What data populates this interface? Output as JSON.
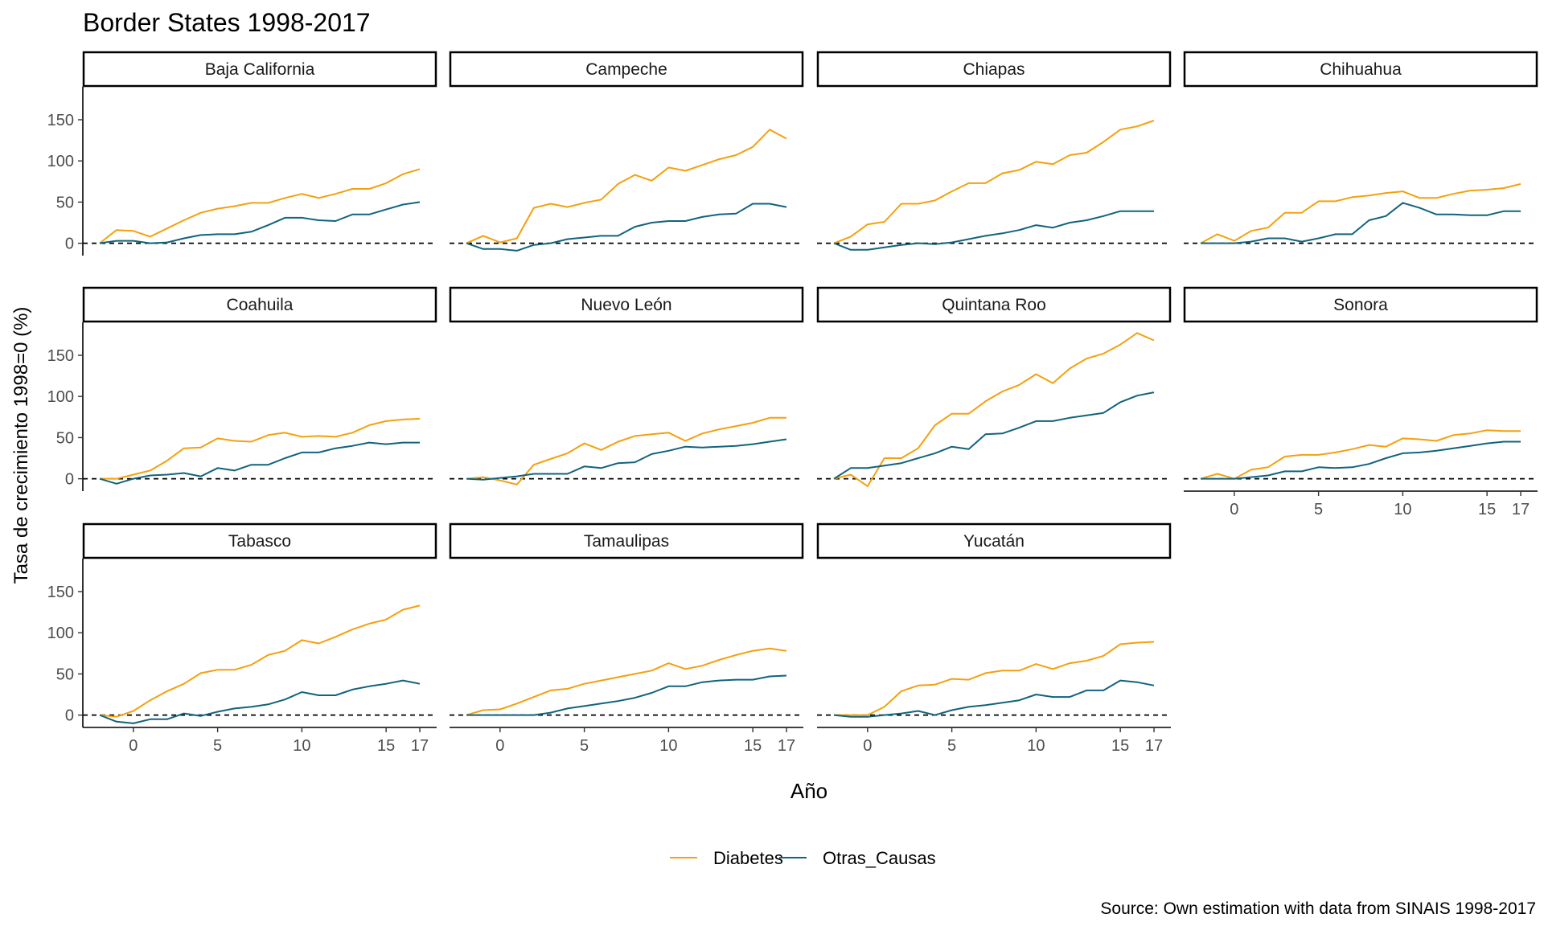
{
  "chart_data": {
    "type": "line",
    "title": "Border States 1998-2017",
    "xlabel": "Año",
    "ylabel": "Tasa de crecimiento 1998=0 (%)",
    "caption": "Source: Own estimation with data from SINAIS 1998-2017",
    "x": [
      -2,
      -1,
      0,
      1,
      2,
      3,
      4,
      5,
      6,
      7,
      8,
      9,
      10,
      11,
      12,
      13,
      14,
      15,
      16,
      17
    ],
    "xlim": [
      -3,
      18
    ],
    "ylim": [
      -15,
      190
    ],
    "x_ticks": [
      0,
      5,
      10,
      15,
      17
    ],
    "y_ticks": [
      0,
      50,
      100,
      150
    ],
    "reference_line": 0,
    "grid": false,
    "legend_position": "bottom",
    "series_names": [
      "Diabetes",
      "Otras_Causas"
    ],
    "colors": {
      "Diabetes": "#F5A00E",
      "Otras_Causas": "#11637E",
      "reference": "#000000"
    },
    "panels": [
      {
        "name": "Baja California",
        "series": [
          {
            "name": "Diabetes",
            "values": [
              0,
              16,
              15,
              8,
              18,
              28,
              37,
              42,
              45,
              49,
              49,
              55,
              60,
              55,
              60,
              66,
              66,
              73,
              84,
              90
            ]
          },
          {
            "name": "Otras_Causas",
            "values": [
              0,
              3,
              3,
              0,
              1,
              6,
              10,
              11,
              11,
              14,
              22,
              31,
              31,
              28,
              27,
              35,
              35,
              41,
              47,
              50
            ]
          }
        ]
      },
      {
        "name": "Campeche",
        "series": [
          {
            "name": "Diabetes",
            "values": [
              0,
              9,
              1,
              6,
              43,
              48,
              44,
              49,
              53,
              72,
              83,
              76,
              92,
              88,
              95,
              102,
              107,
              117,
              138,
              127
            ]
          },
          {
            "name": "Otras_Causas",
            "values": [
              0,
              -7,
              -7,
              -9,
              -2,
              0,
              5,
              7,
              9,
              9,
              20,
              25,
              27,
              27,
              32,
              35,
              36,
              48,
              48,
              44
            ]
          }
        ]
      },
      {
        "name": "Chiapas",
        "series": [
          {
            "name": "Diabetes",
            "values": [
              0,
              8,
              23,
              26,
              48,
              48,
              52,
              63,
              73,
              73,
              85,
              89,
              99,
              96,
              107,
              110,
              123,
              138,
              142,
              149
            ]
          },
          {
            "name": "Otras_Causas",
            "values": [
              0,
              -8,
              -8,
              -5,
              -2,
              0,
              -1,
              1,
              5,
              9,
              12,
              16,
              22,
              19,
              25,
              28,
              33,
              39,
              39,
              39
            ]
          }
        ]
      },
      {
        "name": "Chihuahua",
        "series": [
          {
            "name": "Diabetes",
            "values": [
              0,
              11,
              3,
              15,
              19,
              37,
              37,
              51,
              51,
              56,
              58,
              61,
              63,
              55,
              55,
              60,
              64,
              65,
              67,
              72
            ]
          },
          {
            "name": "Otras_Causas",
            "values": [
              0,
              0,
              0,
              2,
              6,
              6,
              2,
              6,
              11,
              11,
              28,
              33,
              49,
              43,
              35,
              35,
              34,
              34,
              39,
              39
            ]
          }
        ]
      },
      {
        "name": "Coahuila",
        "series": [
          {
            "name": "Diabetes",
            "values": [
              0,
              0,
              5,
              10,
              22,
              37,
              38,
              49,
              46,
              45,
              53,
              56,
              51,
              52,
              51,
              56,
              65,
              70,
              72,
              73
            ]
          },
          {
            "name": "Otras_Causas",
            "values": [
              0,
              -6,
              0,
              4,
              5,
              7,
              3,
              13,
              10,
              17,
              17,
              25,
              32,
              32,
              37,
              40,
              44,
              42,
              44,
              44
            ]
          }
        ]
      },
      {
        "name": "Nuevo León",
        "series": [
          {
            "name": "Diabetes",
            "values": [
              0,
              2,
              -2,
              -7,
              17,
              24,
              31,
              43,
              35,
              45,
              52,
              54,
              56,
              46,
              55,
              60,
              64,
              68,
              74,
              74
            ]
          },
          {
            "name": "Otras_Causas",
            "values": [
              0,
              -1,
              1,
              3,
              6,
              6,
              6,
              15,
              13,
              19,
              20,
              30,
              34,
              39,
              38,
              39,
              40,
              42,
              45,
              48
            ]
          }
        ]
      },
      {
        "name": "Quintana Roo",
        "series": [
          {
            "name": "Diabetes",
            "values": [
              0,
              5,
              -9,
              25,
              25,
              37,
              65,
              79,
              79,
              94,
              106,
              114,
              127,
              116,
              134,
              146,
              152,
              163,
              177,
              168
            ]
          },
          {
            "name": "Otras_Causas",
            "values": [
              0,
              13,
              13,
              16,
              19,
              25,
              31,
              39,
              36,
              54,
              55,
              62,
              70,
              70,
              74,
              77,
              80,
              93,
              101,
              105
            ]
          }
        ]
      },
      {
        "name": "Sonora",
        "series": [
          {
            "name": "Diabetes",
            "values": [
              0,
              6,
              0,
              11,
              14,
              27,
              29,
              29,
              32,
              36,
              41,
              39,
              49,
              48,
              46,
              53,
              55,
              59,
              58,
              58
            ]
          },
          {
            "name": "Otras_Causas",
            "values": [
              0,
              0,
              0,
              2,
              4,
              9,
              9,
              14,
              13,
              14,
              18,
              25,
              31,
              32,
              34,
              37,
              40,
              43,
              45,
              45
            ]
          }
        ]
      },
      {
        "name": "Tabasco",
        "series": [
          {
            "name": "Diabetes",
            "values": [
              0,
              -2,
              5,
              18,
              29,
              38,
              51,
              55,
              55,
              61,
              73,
              78,
              91,
              87,
              95,
              104,
              111,
              116,
              128,
              133
            ]
          },
          {
            "name": "Otras_Causas",
            "values": [
              0,
              -8,
              -10,
              -5,
              -5,
              2,
              -1,
              4,
              8,
              10,
              13,
              19,
              28,
              24,
              24,
              31,
              35,
              38,
              42,
              38
            ]
          }
        ]
      },
      {
        "name": "Tamaulipas",
        "series": [
          {
            "name": "Diabetes",
            "values": [
              0,
              6,
              7,
              14,
              22,
              30,
              32,
              38,
              42,
              46,
              50,
              54,
              63,
              56,
              60,
              67,
              73,
              78,
              81,
              78
            ]
          },
          {
            "name": "Otras_Causas",
            "values": [
              0,
              0,
              0,
              0,
              0,
              3,
              8,
              11,
              14,
              17,
              21,
              27,
              35,
              35,
              40,
              42,
              43,
              43,
              47,
              48
            ]
          }
        ]
      },
      {
        "name": "Yucatán",
        "series": [
          {
            "name": "Diabetes",
            "values": [
              0,
              0,
              0,
              10,
              29,
              36,
              37,
              44,
              43,
              51,
              54,
              54,
              62,
              56,
              63,
              66,
              72,
              86,
              88,
              89
            ]
          },
          {
            "name": "Otras_Causas",
            "values": [
              0,
              -2,
              -2,
              0,
              2,
              5,
              0,
              6,
              10,
              12,
              15,
              18,
              25,
              22,
              22,
              30,
              30,
              42,
              40,
              36
            ]
          }
        ]
      }
    ]
  }
}
